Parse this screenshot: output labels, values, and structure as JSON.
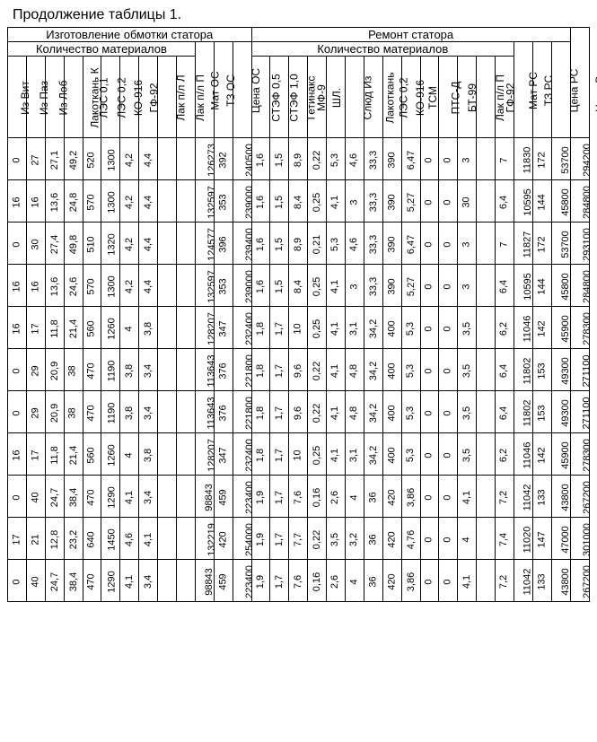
{
  "title": "Продолжение таблицы 1.",
  "headers": {
    "group_stator_make": "Изготовление обмотки статора",
    "group_stator_repair": "Ремонт статора",
    "qty_materials": "Количество материалов",
    "price_total": "Цена Всего",
    "cols": [
      "Из Вит",
      "Из Паз",
      "Из Лоб",
      "Лакоткань К",
      "ЛЭС 0,1",
      "ЛЭС 0,2",
      "КО-916",
      "ГФ-92",
      "Лак п/л Л",
      "Лак п/л П",
      "Мат ОС",
      "ТЗ ОС",
      "Цена ОС",
      "СТЭФ 0,5",
      "СТЭФ 1,0",
      "Гетинакс",
      "МФ-9",
      "ШЛ.",
      "Слюд Из",
      "Лакоткань",
      "ЛЭС 0,2",
      "КО-916",
      "ТСМ",
      "ПТС-Д",
      "БТ-99",
      "Лак п/л П",
      "ГФ-92",
      "Мат РС",
      "ТЗ РС",
      "Цена РС"
    ]
  },
  "rows": [
    [
      "0",
      "27",
      "27,1",
      "49,2",
      "520",
      "1300",
      "4,2",
      "4,4",
      "",
      "",
      "126273",
      "392",
      "240500",
      "1,6",
      "1,5",
      "8,9",
      "0,22",
      "5,3",
      "4,6",
      "33,3",
      "390",
      "6,47",
      "0",
      "0",
      "3",
      "",
      "7",
      "11830",
      "172",
      "53700",
      "294200"
    ],
    [
      "16",
      "16",
      "13,6",
      "24,8",
      "570",
      "1300",
      "4,2",
      "4,4",
      "",
      "",
      "132597",
      "353",
      "239000",
      "1,6",
      "1,5",
      "8,4",
      "0,25",
      "4,1",
      "3",
      "33,3",
      "390",
      "5,27",
      "0",
      "0",
      "30",
      "",
      "6,4",
      "10595",
      "144",
      "45800",
      "284800"
    ],
    [
      "0",
      "30",
      "27,4",
      "49,8",
      "510",
      "1320",
      "4,2",
      "4,4",
      "",
      "",
      "124577",
      "396",
      "239400",
      "1,6",
      "1,5",
      "8,9",
      "0,21",
      "5,3",
      "4,6",
      "33,3",
      "390",
      "6,47",
      "0",
      "0",
      "3",
      "",
      "7",
      "11827",
      "172",
      "53700",
      "293100"
    ],
    [
      "16",
      "16",
      "13,6",
      "24,6",
      "570",
      "1300",
      "4,2",
      "4,4",
      "",
      "",
      "132597",
      "353",
      "239000",
      "1,6",
      "1,5",
      "8,4",
      "0,25",
      "4,1",
      "3",
      "33,3",
      "390",
      "5,27",
      "0",
      "0",
      "3",
      "",
      "6,4",
      "10595",
      "144",
      "45800",
      "284800"
    ],
    [
      "16",
      "17",
      "11,8",
      "21,4",
      "560",
      "1260",
      "4",
      "3,8",
      "",
      "",
      "128207",
      "347",
      "232400",
      "1,8",
      "1,7",
      "10",
      "0,25",
      "4,1",
      "3,1",
      "34,2",
      "400",
      "5,3",
      "0",
      "0",
      "3,5",
      "",
      "6,2",
      "11046",
      "142",
      "45900",
      "278300"
    ],
    [
      "0",
      "29",
      "20,9",
      "38",
      "470",
      "1190",
      "3,8",
      "3,4",
      "",
      "",
      "113643",
      "376",
      "221800",
      "1,8",
      "1,7",
      "9,6",
      "0,22",
      "4,1",
      "4,8",
      "34,2",
      "400",
      "5,3",
      "0",
      "0",
      "3,5",
      "",
      "6,4",
      "11802",
      "153",
      "49300",
      "271100"
    ],
    [
      "0",
      "29",
      "20,9",
      "38",
      "470",
      "1190",
      "3,8",
      "3,4",
      "",
      "",
      "113643",
      "376",
      "221800",
      "1,8",
      "1,7",
      "9,6",
      "0,22",
      "4,1",
      "4,8",
      "34,2",
      "400",
      "5,3",
      "0",
      "0",
      "3,5",
      "",
      "6,4",
      "11802",
      "153",
      "49300",
      "271100"
    ],
    [
      "16",
      "17",
      "11,8",
      "21,4",
      "560",
      "1260",
      "4",
      "3,8",
      "",
      "",
      "128207",
      "347",
      "232400",
      "1,8",
      "1,7",
      "10",
      "0,25",
      "4,1",
      "3,1",
      "34,2",
      "400",
      "5,3",
      "0",
      "0",
      "3,5",
      "",
      "6,2",
      "11046",
      "142",
      "45900",
      "278300"
    ],
    [
      "0",
      "40",
      "24,7",
      "38,4",
      "470",
      "1290",
      "4,1",
      "3,4",
      "",
      "",
      "98843",
      "459",
      "223400",
      "1,9",
      "1,7",
      "7,6",
      "0,16",
      "2,6",
      "4",
      "36",
      "420",
      "3,86",
      "0",
      "0",
      "4,1",
      "",
      "7,2",
      "11042",
      "133",
      "43800",
      "267200"
    ],
    [
      "17",
      "21",
      "12,8",
      "23,2",
      "640",
      "1450",
      "4,6",
      "4,1",
      "",
      "",
      "132219",
      "420",
      "254000",
      "1,9",
      "1,7",
      "7,7",
      "0,22",
      "3,5",
      "3,2",
      "36",
      "420",
      "4,76",
      "0",
      "0",
      "4",
      "",
      "7,4",
      "11020",
      "147",
      "47000",
      "301000"
    ],
    [
      "0",
      "40",
      "24,7",
      "38,4",
      "470",
      "1290",
      "4,1",
      "3,4",
      "",
      "",
      "98843",
      "459",
      "223400",
      "1,9",
      "1,7",
      "7,6",
      "0,16",
      "2,6",
      "4",
      "36",
      "420",
      "3,86",
      "0",
      "0",
      "4,1",
      "",
      "7,2",
      "11042",
      "133",
      "43800",
      "267200"
    ]
  ],
  "style": {
    "border_color": "#000000",
    "background_color": "#ffffff",
    "header_font_size": 13,
    "col_font_size": 12,
    "data_font_size": 11
  }
}
